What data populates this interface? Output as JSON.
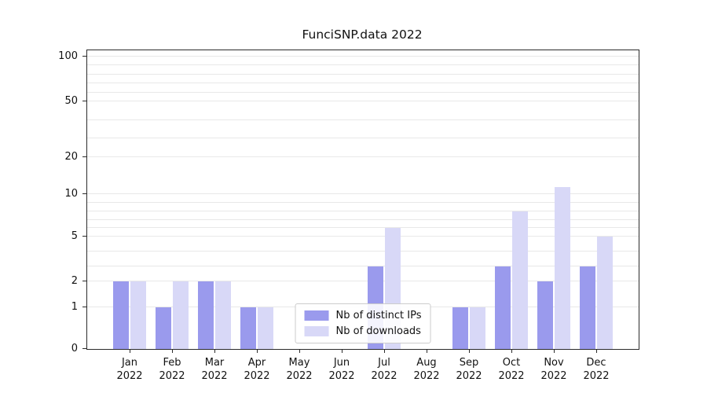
{
  "chart_data": {
    "type": "bar",
    "title": "FunciSNP.data 2022",
    "year": "2022",
    "categories": [
      "Jan",
      "Feb",
      "Mar",
      "Apr",
      "May",
      "Jun",
      "Jul",
      "Aug",
      "Sep",
      "Oct",
      "Nov",
      "Dec"
    ],
    "series": [
      {
        "name": "Nb of distinct IPs",
        "color": "#9a9aed",
        "values": [
          2,
          1,
          2,
          1,
          0,
          0,
          3,
          0,
          1,
          3,
          2,
          3
        ]
      },
      {
        "name": "Nb of downloads",
        "color": "#d8d8f7",
        "values": [
          2,
          2,
          2,
          1,
          0,
          0,
          6,
          0,
          1,
          8,
          12,
          5
        ]
      }
    ],
    "yticks": [
      0,
      1,
      2,
      5,
      10,
      20,
      50,
      100
    ],
    "gridline_values": [
      1,
      2,
      3,
      4,
      5,
      6,
      7,
      8,
      9,
      10,
      20,
      30,
      40,
      50,
      60,
      70,
      80,
      90,
      100
    ],
    "scale_points": [
      [
        0,
        0
      ],
      [
        1,
        0.14
      ],
      [
        2,
        0.226
      ],
      [
        5,
        0.376
      ],
      [
        10,
        0.518
      ],
      [
        20,
        0.642
      ],
      [
        50,
        0.829
      ],
      [
        100,
        0.979
      ]
    ],
    "ylim": [
      0,
      100
    ],
    "legend": {
      "position": "lower center"
    },
    "grid": "on"
  }
}
